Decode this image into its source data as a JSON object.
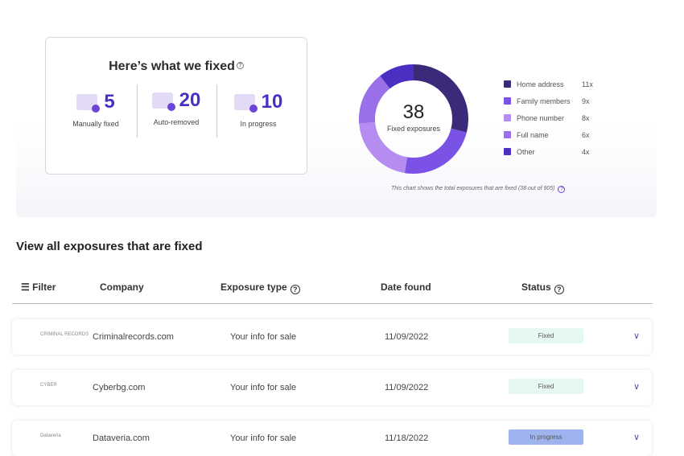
{
  "summary": {
    "title": "Here’s what we fixed",
    "stats": [
      {
        "value": "5",
        "label": "Manually fixed",
        "icon": "document-check-icon"
      },
      {
        "value": "20",
        "label": "Auto-removed",
        "icon": "document-minus-icon"
      },
      {
        "value": "10",
        "label": "In progress",
        "icon": "document-refresh-icon"
      }
    ]
  },
  "chart_data": {
    "type": "pie",
    "variant": "donut",
    "center_value": "38",
    "center_label": "Fixed exposures",
    "categories": [
      "Home address",
      "Family members",
      "Phone number",
      "Full name",
      "Other"
    ],
    "values": [
      11,
      9,
      8,
      6,
      4
    ],
    "value_labels": [
      "11x",
      "9x",
      "8x",
      "6x",
      "4x"
    ],
    "colors": [
      "#3b2a7a",
      "#7b52e6",
      "#b58cf0",
      "#9a70ea",
      "#4a2fc2"
    ],
    "legend": "right",
    "note": "This chart shows the total exposures that are fixed (38 out of 905)"
  },
  "section_title": "View all exposures that are fixed",
  "table": {
    "filter_label": "Filter",
    "columns": [
      "Company",
      "Exposure type",
      "Date found",
      "Status"
    ],
    "rows": [
      {
        "logo": "CRIMINAL RECORDS",
        "company": "Criminalrecords.com",
        "type": "Your info for sale",
        "date": "11/09/2022",
        "status": "Fixed",
        "status_color": "#e6f8f4"
      },
      {
        "logo": "CYBER",
        "company": "Cyberbg.com",
        "type": "Your info for sale",
        "date": "11/09/2022",
        "status": "Fixed",
        "status_color": "#e6f8f4"
      },
      {
        "logo": "Dataveria",
        "company": "Dataveria.com",
        "type": "Your info for sale",
        "date": "11/18/2022",
        "status": "In progress",
        "status_color": "#9fb4ee"
      }
    ]
  }
}
